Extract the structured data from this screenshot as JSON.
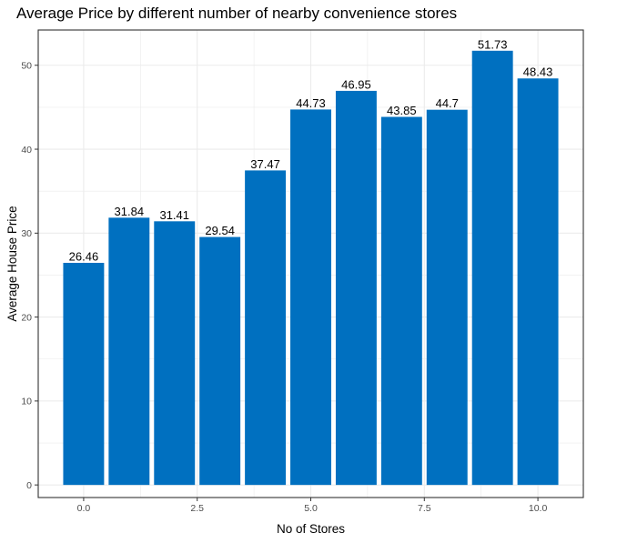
{
  "chart_data": {
    "type": "bar",
    "title": "Average Price by different number of nearby convenience stores",
    "xlabel": "No of Stores",
    "ylabel": "Average House Price",
    "x": [
      0,
      1,
      2,
      3,
      4,
      5,
      6,
      7,
      8,
      9,
      10
    ],
    "values": [
      26.46,
      31.84,
      31.41,
      29.54,
      37.47,
      44.73,
      46.95,
      43.85,
      44.7,
      51.73,
      48.43
    ],
    "data_labels": [
      "26.46",
      "31.84",
      "31.41",
      "29.54",
      "37.47",
      "44.73",
      "46.95",
      "43.85",
      "44.7",
      "51.73",
      "48.43"
    ],
    "xticks": [
      0,
      2.5,
      5,
      7.5,
      10
    ],
    "xtick_labels": [
      "0.0",
      "2.5",
      "5.0",
      "7.5",
      "10.0"
    ],
    "yticks": [
      0,
      10,
      20,
      30,
      40,
      50
    ],
    "ytick_labels": [
      "0",
      "10",
      "20",
      "30",
      "40",
      "50"
    ],
    "xlim": [
      -1,
      11
    ],
    "ylim": [
      -1.5,
      54.2
    ],
    "grid": true,
    "bar_color": "#0070C0",
    "grid_color": "#ebebeb",
    "panel_border_color": "#333333"
  }
}
